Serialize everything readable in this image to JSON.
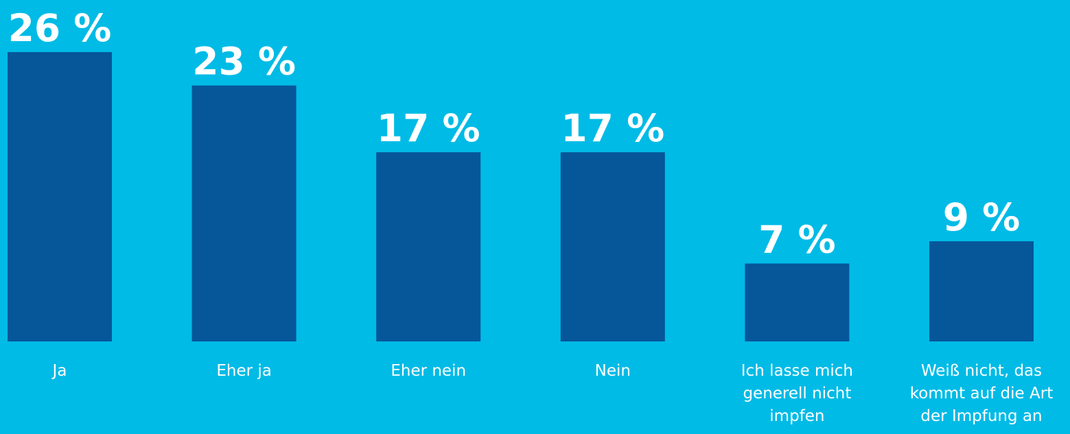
{
  "chart_data": {
    "type": "bar",
    "categories": [
      "Ja",
      "Eher ja",
      "Eher nein",
      "Nein",
      "Ich lasse mich generell nicht impfen",
      "Weiß nicht, das kommt auf die Art der Impfung an"
    ],
    "category_lines": [
      [
        "Ja"
      ],
      [
        "Eher ja"
      ],
      [
        "Eher nein"
      ],
      [
        "Nein"
      ],
      [
        "Ich lasse mich",
        "generell nicht",
        "impfen"
      ],
      [
        "Weiß nicht, das",
        "kommt auf die Art",
        "der Impfung an"
      ]
    ],
    "values": [
      26,
      23,
      17,
      17,
      7,
      9
    ],
    "value_labels": [
      "26 %",
      "23 %",
      "17 %",
      "17 %",
      "7 %",
      "9 %"
    ],
    "unit": "%",
    "ylim": [
      0,
      26
    ],
    "grid": false,
    "legend": "none",
    "colors": {
      "background": "#00bbe6",
      "bar": "#06569a",
      "text": "#ffffff"
    }
  }
}
